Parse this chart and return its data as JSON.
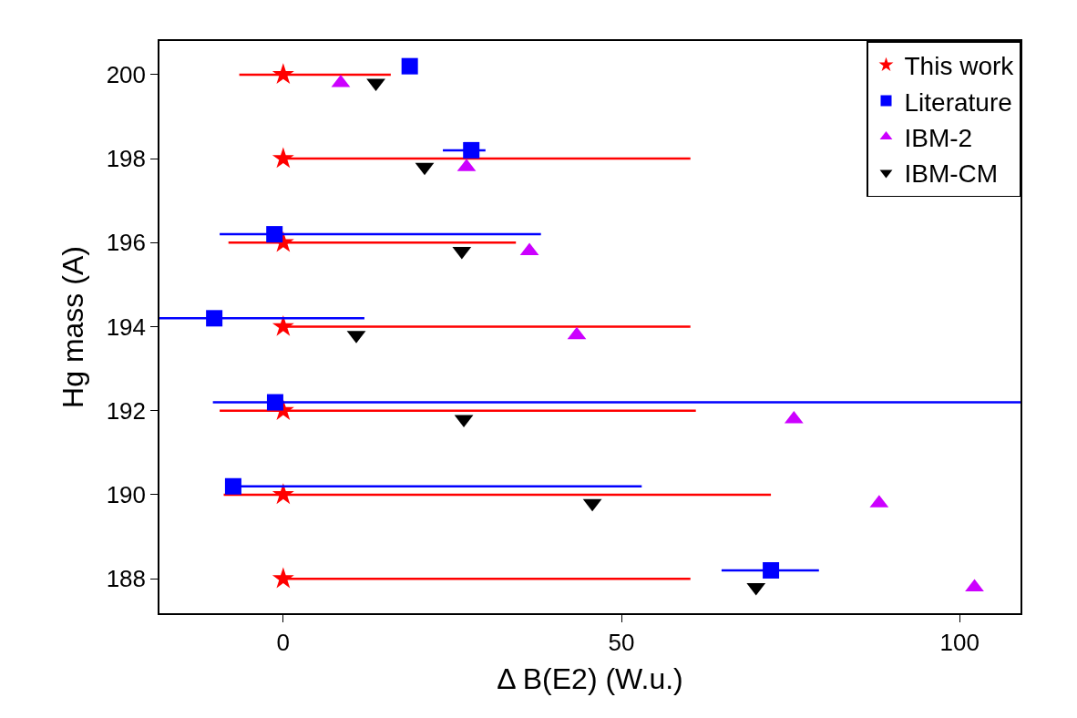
{
  "chart_data": {
    "type": "scatter",
    "xlabel": "Δ B(E2) (W.u.)",
    "ylabel": "Hg mass (A)",
    "xlim": [
      -18.3,
      109
    ],
    "ylim": [
      187.18,
      200.8
    ],
    "xticks": [
      0,
      50,
      100
    ],
    "yticks": [
      188,
      190,
      192,
      194,
      196,
      198,
      200
    ],
    "legend": "top right",
    "series": [
      {
        "name": "This work",
        "color": "#ff0000",
        "marker": "star",
        "x": [
          0,
          0,
          0,
          0,
          0,
          0,
          0
        ],
        "values": [
          200,
          198,
          196,
          194,
          192,
          190,
          188
        ],
        "xerrors": [
          [
            -6.5,
            15.9
          ],
          [
            0,
            60.2
          ],
          [
            -8.1,
            34.4
          ],
          [
            0,
            60.2
          ],
          [
            -9.4,
            61.0
          ],
          [
            -8.8,
            72.1
          ],
          [
            0,
            60.2
          ]
        ]
      },
      {
        "name": "Literature",
        "color": "#0000ff",
        "marker": "square",
        "x": [
          18.7,
          27.8,
          -1.3,
          -10.2,
          -1.2,
          -7.4,
          72.1
        ],
        "values": [
          200.2,
          198.2,
          196.2,
          194.2,
          192.2,
          190.2,
          188.2
        ],
        "xerrors": [
          null,
          [
            23.6,
            29.9
          ],
          [
            -9.4,
            38.1
          ],
          [
            -18.3,
            12.0
          ],
          [
            -10.4,
            109
          ],
          [
            -7.4,
            53.0
          ],
          [
            64.8,
            79.2
          ]
        ]
      },
      {
        "name": "IBM-2",
        "color": "#cc00ff",
        "marker": "triangle",
        "x": [
          8.5,
          27.1,
          36.4,
          43.4,
          75.5,
          88.1,
          102.2
        ],
        "values": [
          199.8,
          197.8,
          195.8,
          193.8,
          191.8,
          189.8,
          187.8
        ]
      },
      {
        "name": "IBM-CM",
        "color": "#000000",
        "marker": "triangle-down",
        "x": [
          13.7,
          20.9,
          26.4,
          10.8,
          26.7,
          45.7,
          69.9
        ],
        "values": [
          199.8,
          197.8,
          195.8,
          193.8,
          191.8,
          189.8,
          187.8
        ]
      }
    ]
  }
}
